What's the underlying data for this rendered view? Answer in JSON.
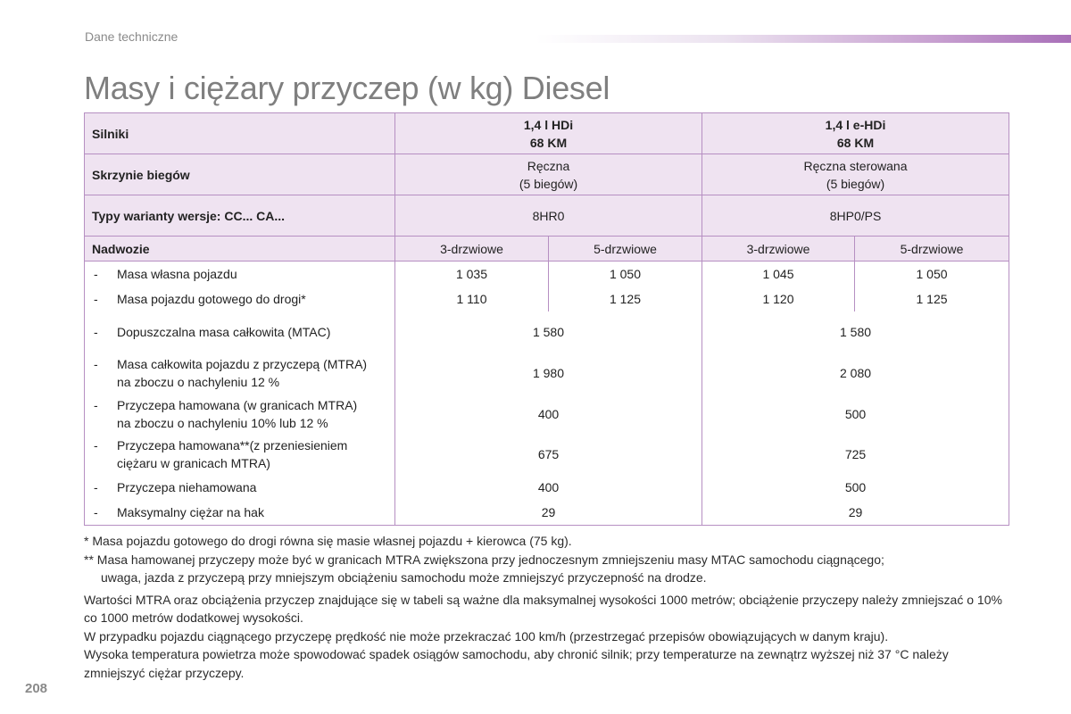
{
  "header": {
    "section_label": "Dane techniczne"
  },
  "title": "Masy i ciężary przyczep (w kg) Diesel",
  "table": {
    "engine_label": "Silniki",
    "engine_1": "1,4 l HDi\n68 KM",
    "engine_2": "1,4 l e-HDi\n68 KM",
    "gearbox_label": "Skrzynie biegów",
    "gearbox_1": "Ręczna\n(5 biegów)",
    "gearbox_2": "Ręczna sterowana\n(5 biegów)",
    "types_label": "Typy warianty wersje: CC... CA...",
    "types_1": "8HR0",
    "types_2": "8HP0/PS",
    "body_label": "Nadwozie",
    "body_cols": [
      "3-drzwiowe",
      "5-drzwiowe",
      "3-drzwiowe",
      "5-drzwiowe"
    ],
    "dash": "-",
    "rows4": [
      {
        "label": "Masa własna pojazdu",
        "values": [
          "1 035",
          "1 050",
          "1 045",
          "1 050"
        ]
      },
      {
        "label": "Masa pojazdu gotowego do drogi*",
        "values": [
          "1 110",
          "1 125",
          "1 120",
          "1 125"
        ]
      }
    ],
    "rows2": [
      {
        "label": "Dopuszczalna masa całkowita (MTAC)",
        "values": [
          "1 580",
          "1 580"
        ]
      },
      {
        "label": "Masa całkowita pojazdu z przyczepą (MTRA)\nna zboczu o nachyleniu 12 %",
        "values": [
          "1 980",
          "2 080"
        ]
      },
      {
        "label": "Przyczepa hamowana (w granicach MTRA)\nna zboczu o nachyleniu 10% lub 12 %",
        "values": [
          "400",
          "500"
        ]
      },
      {
        "label": "Przyczepa hamowana**(z przeniesieniem\nciężaru w granicach MTRA)",
        "values": [
          "675",
          "725"
        ]
      },
      {
        "label": "Przyczepa niehamowana",
        "values": [
          "400",
          "500"
        ]
      },
      {
        "label": "Maksymalny ciężar na hak",
        "values": [
          "29",
          "29"
        ]
      }
    ]
  },
  "notes": {
    "note1": "* Masa pojazdu gotowego do drogi równa się masie własnej pojazdu + kierowca (75 kg).",
    "note2a": "** Masa hamowanej przyczepy może być w granicach MTRA zwiększona przy jednoczesnym zmniejszeniu masy MTAC samochodu ciągnącego;",
    "note2b": "uwaga, jazda z przyczepą przy mniejszym obciążeniu samochodu może zmniejszyć przyczepność na drodze.",
    "para1": "Wartości MTRA oraz obciążenia przyczep znajdujące się w tabeli są ważne dla maksymalnej wysokości 1000 metrów; obciążenie przyczepy należy zmniejszać o 10% co 1000 metrów dodatkowej wysokości.",
    "para2": "W przypadku pojazdu ciągnącego przyczepę prędkość nie może przekraczać 100 km/h (przestrzegać przepisów obowiązujących w danym kraju).",
    "para3": "Wysoka temperatura powietrza może spowodować spadek osiągów samochodu, aby chronić silnik; przy temperaturze na zewnątrz wyższej niż 37 °C należy zmniejszyć ciężar przyczepy."
  },
  "page_number": "208",
  "colors": {
    "accent": "#b68fc2",
    "header_fill": "#efe3f1",
    "title_grey": "#7f7f7f"
  }
}
